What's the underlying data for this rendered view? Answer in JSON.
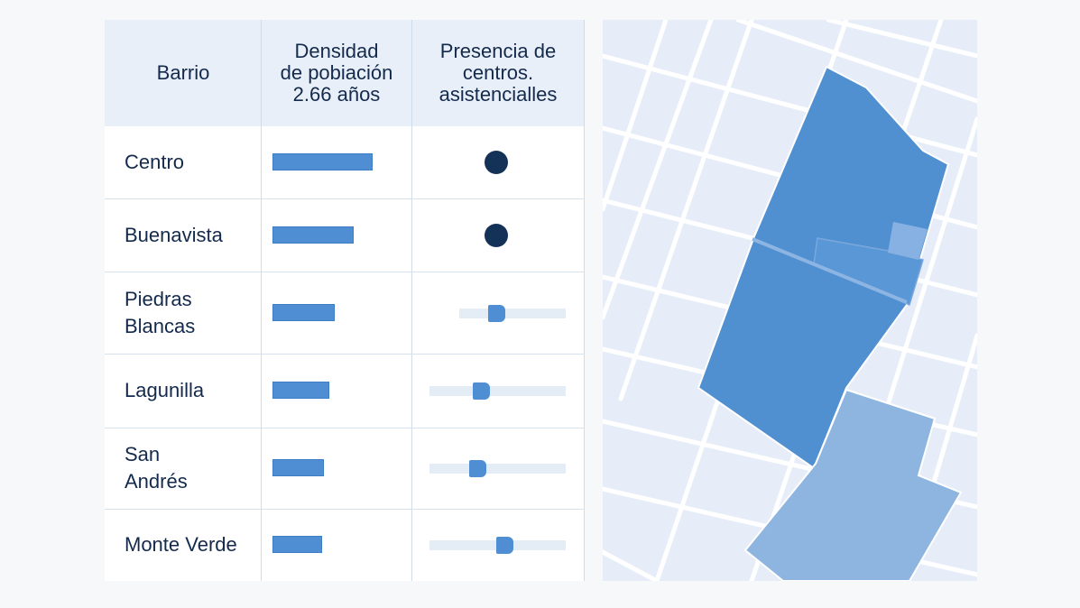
{
  "table": {
    "headers": {
      "barrio": "Barrio",
      "densidad": [
        "Densidad",
        "de pobiación",
        "2.66 años"
      ],
      "presencia": [
        "Presencia de",
        "centros.",
        "asistencialles"
      ]
    },
    "rows": [
      {
        "barrio": [
          "Centro"
        ],
        "density": 0.84,
        "presence": "dot"
      },
      {
        "barrio": [
          "Buenavista"
        ],
        "density": 0.68,
        "presence": "dot"
      },
      {
        "barrio": [
          "Piedras",
          "Blancas"
        ],
        "density": 0.52,
        "presence": "slider",
        "level": 0.35
      },
      {
        "barrio": [
          "Lagunilla"
        ],
        "density": 0.48,
        "presence": "slider",
        "level": 0.38
      },
      {
        "barrio": [
          "San",
          "Andrés"
        ],
        "density": 0.43,
        "presence": "slider",
        "level": 0.35
      },
      {
        "barrio": [
          "Monte Verde"
        ],
        "density": 0.42,
        "presence": "slider",
        "level": 0.55
      }
    ]
  },
  "colors": {
    "accent": "#4f8ed3",
    "dark_dot": "#143258",
    "header_bg": "#e9eff8",
    "map_bg": "#e6edf8",
    "zone_main": "#5190d0",
    "zone_light": "#8db5e0"
  }
}
